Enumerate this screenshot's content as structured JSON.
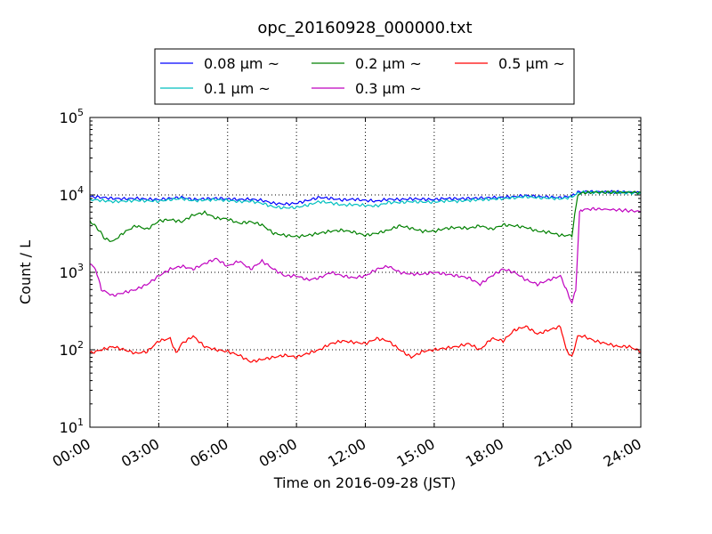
{
  "chart_data": {
    "type": "line",
    "title": "opc_20160928_000000.txt",
    "xlabel": "Time on 2016-09-28 (JST)",
    "ylabel": "Count / L",
    "y_scale": "log",
    "ylim": [
      10,
      100000
    ],
    "xlim": [
      "00:00",
      "24:00"
    ],
    "grid": true,
    "legend_position": "top-center",
    "x_ticks": [
      "00:00",
      "03:00",
      "06:00",
      "09:00",
      "12:00",
      "15:00",
      "18:00",
      "21:00",
      "24:00"
    ],
    "y_ticks": [
      {
        "base": "10",
        "exp": "1",
        "value": 10
      },
      {
        "base": "10",
        "exp": "2",
        "value": 100
      },
      {
        "base": "10",
        "exp": "3",
        "value": 1000
      },
      {
        "base": "10",
        "exp": "4",
        "value": 10000
      },
      {
        "base": "10",
        "exp": "5",
        "value": 100000
      }
    ],
    "series": [
      {
        "name": "0.08 μm ~",
        "color": "#0000ff",
        "points": [
          [
            "00:00",
            9500
          ],
          [
            "00:30",
            9300
          ],
          [
            "01:00",
            9000
          ],
          [
            "01:30",
            8900
          ],
          [
            "02:00",
            9000
          ],
          [
            "02:30",
            8800
          ],
          [
            "03:00",
            8700
          ],
          [
            "03:30",
            9000
          ],
          [
            "04:00",
            9300
          ],
          [
            "04:30",
            8700
          ],
          [
            "05:00",
            8900
          ],
          [
            "05:30",
            9000
          ],
          [
            "06:00",
            8900
          ],
          [
            "06:30",
            8700
          ],
          [
            "07:00",
            8800
          ],
          [
            "07:30",
            8500
          ],
          [
            "08:00",
            7800
          ],
          [
            "08:30",
            7600
          ],
          [
            "09:00",
            7800
          ],
          [
            "09:30",
            8500
          ],
          [
            "10:00",
            9300
          ],
          [
            "10:30",
            9000
          ],
          [
            "11:00",
            8600
          ],
          [
            "11:30",
            8800
          ],
          [
            "12:00",
            8500
          ],
          [
            "12:30",
            8300
          ],
          [
            "13:00",
            8800
          ],
          [
            "13:30",
            8700
          ],
          [
            "14:00",
            8900
          ],
          [
            "14:30",
            8800
          ],
          [
            "15:00",
            8700
          ],
          [
            "15:30",
            9000
          ],
          [
            "16:00",
            8900
          ],
          [
            "16:30",
            9000
          ],
          [
            "17:00",
            9100
          ],
          [
            "17:30",
            9200
          ],
          [
            "18:00",
            9300
          ],
          [
            "18:30",
            9500
          ],
          [
            "19:00",
            9800
          ],
          [
            "19:30",
            9500
          ],
          [
            "20:00",
            9400
          ],
          [
            "20:30",
            9200
          ],
          [
            "21:00",
            9700
          ],
          [
            "21:15",
            10800
          ],
          [
            "21:30",
            11000
          ],
          [
            "22:00",
            11000
          ],
          [
            "23:00",
            10900
          ],
          [
            "24:00",
            10800
          ]
        ]
      },
      {
        "name": "0.1 μm ~",
        "color": "#00bfbf",
        "points": [
          [
            "00:00",
            8700
          ],
          [
            "00:30",
            8500
          ],
          [
            "01:00",
            8200
          ],
          [
            "01:30",
            8300
          ],
          [
            "02:00",
            8500
          ],
          [
            "02:30",
            8400
          ],
          [
            "03:00",
            8300
          ],
          [
            "03:30",
            8700
          ],
          [
            "04:00",
            9000
          ],
          [
            "04:30",
            8400
          ],
          [
            "05:00",
            8600
          ],
          [
            "05:30",
            8700
          ],
          [
            "06:00",
            8500
          ],
          [
            "06:30",
            8200
          ],
          [
            "07:00",
            8300
          ],
          [
            "07:30",
            7800
          ],
          [
            "08:00",
            7000
          ],
          [
            "08:30",
            6800
          ],
          [
            "09:00",
            6900
          ],
          [
            "09:30",
            7400
          ],
          [
            "10:00",
            8200
          ],
          [
            "10:30",
            7900
          ],
          [
            "11:00",
            7400
          ],
          [
            "11:30",
            7500
          ],
          [
            "12:00",
            7300
          ],
          [
            "12:30",
            7200
          ],
          [
            "13:00",
            8000
          ],
          [
            "13:30",
            8000
          ],
          [
            "14:00",
            8200
          ],
          [
            "14:30",
            8100
          ],
          [
            "15:00",
            8100
          ],
          [
            "15:30",
            8400
          ],
          [
            "16:00",
            8300
          ],
          [
            "16:30",
            8500
          ],
          [
            "17:00",
            8700
          ],
          [
            "17:30",
            8800
          ],
          [
            "18:00",
            9000
          ],
          [
            "18:30",
            9200
          ],
          [
            "19:00",
            9500
          ],
          [
            "19:30",
            9200
          ],
          [
            "20:00",
            9100
          ],
          [
            "20:30",
            8900
          ],
          [
            "21:00",
            9400
          ],
          [
            "21:15",
            10500
          ],
          [
            "21:30",
            10800
          ],
          [
            "22:00",
            10800
          ],
          [
            "23:00",
            10700
          ],
          [
            "24:00",
            10600
          ]
        ]
      },
      {
        "name": "0.2 μm ~",
        "color": "#008000",
        "points": [
          [
            "00:00",
            4600
          ],
          [
            "00:20",
            3700
          ],
          [
            "00:40",
            2700
          ],
          [
            "01:00",
            2500
          ],
          [
            "01:30",
            3300
          ],
          [
            "02:00",
            4000
          ],
          [
            "02:30",
            3600
          ],
          [
            "03:00",
            4600
          ],
          [
            "03:30",
            4800
          ],
          [
            "04:00",
            4500
          ],
          [
            "04:30",
            5500
          ],
          [
            "05:00",
            5900
          ],
          [
            "05:30",
            5000
          ],
          [
            "06:00",
            4900
          ],
          [
            "06:30",
            4300
          ],
          [
            "07:00",
            4500
          ],
          [
            "07:30",
            4100
          ],
          [
            "08:00",
            3200
          ],
          [
            "08:30",
            3000
          ],
          [
            "09:00",
            2900
          ],
          [
            "09:30",
            3000
          ],
          [
            "10:00",
            3200
          ],
          [
            "10:30",
            3400
          ],
          [
            "11:00",
            3500
          ],
          [
            "11:30",
            3300
          ],
          [
            "12:00",
            3000
          ],
          [
            "12:30",
            3200
          ],
          [
            "13:00",
            3500
          ],
          [
            "13:30",
            4000
          ],
          [
            "14:00",
            3700
          ],
          [
            "14:30",
            3400
          ],
          [
            "15:00",
            3400
          ],
          [
            "15:30",
            3700
          ],
          [
            "16:00",
            3800
          ],
          [
            "16:30",
            3700
          ],
          [
            "17:00",
            4000
          ],
          [
            "17:30",
            3600
          ],
          [
            "18:00",
            4100
          ],
          [
            "18:30",
            4000
          ],
          [
            "19:00",
            3800
          ],
          [
            "19:30",
            3400
          ],
          [
            "20:00",
            3300
          ],
          [
            "20:30",
            3000
          ],
          [
            "21:00",
            3000
          ],
          [
            "21:15",
            10000
          ],
          [
            "21:30",
            10700
          ],
          [
            "22:00",
            10800
          ],
          [
            "23:00",
            10800
          ],
          [
            "24:00",
            10800
          ]
        ]
      },
      {
        "name": "0.3 μm ~",
        "color": "#bf00bf",
        "points": [
          [
            "00:00",
            1300
          ],
          [
            "00:15",
            1100
          ],
          [
            "00:30",
            600
          ],
          [
            "01:00",
            500
          ],
          [
            "01:30",
            550
          ],
          [
            "02:00",
            600
          ],
          [
            "02:30",
            700
          ],
          [
            "03:00",
            900
          ],
          [
            "03:30",
            1100
          ],
          [
            "04:00",
            1200
          ],
          [
            "04:30",
            1100
          ],
          [
            "05:00",
            1300
          ],
          [
            "05:30",
            1500
          ],
          [
            "06:00",
            1200
          ],
          [
            "06:30",
            1400
          ],
          [
            "07:00",
            1100
          ],
          [
            "07:30",
            1400
          ],
          [
            "08:00",
            1100
          ],
          [
            "08:30",
            900
          ],
          [
            "09:00",
            900
          ],
          [
            "09:30",
            800
          ],
          [
            "10:00",
            850
          ],
          [
            "10:30",
            1000
          ],
          [
            "11:00",
            900
          ],
          [
            "11:30",
            850
          ],
          [
            "12:00",
            900
          ],
          [
            "12:30",
            1100
          ],
          [
            "13:00",
            1200
          ],
          [
            "13:30",
            1000
          ],
          [
            "14:00",
            950
          ],
          [
            "14:30",
            950
          ],
          [
            "15:00",
            1000
          ],
          [
            "15:30",
            950
          ],
          [
            "16:00",
            900
          ],
          [
            "16:30",
            850
          ],
          [
            "17:00",
            700
          ],
          [
            "17:30",
            900
          ],
          [
            "18:00",
            1100
          ],
          [
            "18:30",
            1000
          ],
          [
            "19:00",
            800
          ],
          [
            "19:30",
            700
          ],
          [
            "20:00",
            800
          ],
          [
            "20:30",
            900
          ],
          [
            "21:00",
            400
          ],
          [
            "21:10",
            600
          ],
          [
            "21:20",
            6000
          ],
          [
            "21:30",
            6500
          ],
          [
            "22:00",
            6600
          ],
          [
            "23:00",
            6400
          ],
          [
            "24:00",
            6100
          ]
        ]
      },
      {
        "name": "0.5 μm ~",
        "color": "#ff0000",
        "points": [
          [
            "00:00",
            90
          ],
          [
            "00:30",
            100
          ],
          [
            "01:00",
            110
          ],
          [
            "01:30",
            100
          ],
          [
            "02:00",
            90
          ],
          [
            "02:30",
            95
          ],
          [
            "03:00",
            130
          ],
          [
            "03:30",
            140
          ],
          [
            "03:45",
            90
          ],
          [
            "04:00",
            120
          ],
          [
            "04:30",
            150
          ],
          [
            "05:00",
            110
          ],
          [
            "05:30",
            100
          ],
          [
            "06:00",
            95
          ],
          [
            "06:30",
            85
          ],
          [
            "07:00",
            70
          ],
          [
            "07:30",
            75
          ],
          [
            "08:00",
            80
          ],
          [
            "08:30",
            85
          ],
          [
            "09:00",
            80
          ],
          [
            "09:30",
            90
          ],
          [
            "10:00",
            100
          ],
          [
            "10:30",
            120
          ],
          [
            "11:00",
            130
          ],
          [
            "11:30",
            125
          ],
          [
            "12:00",
            120
          ],
          [
            "12:30",
            140
          ],
          [
            "13:00",
            130
          ],
          [
            "13:30",
            100
          ],
          [
            "14:00",
            80
          ],
          [
            "14:30",
            95
          ],
          [
            "15:00",
            100
          ],
          [
            "15:30",
            105
          ],
          [
            "16:00",
            110
          ],
          [
            "16:30",
            120
          ],
          [
            "17:00",
            100
          ],
          [
            "17:30",
            140
          ],
          [
            "18:00",
            130
          ],
          [
            "18:30",
            180
          ],
          [
            "19:00",
            200
          ],
          [
            "19:30",
            160
          ],
          [
            "20:00",
            180
          ],
          [
            "20:30",
            200
          ],
          [
            "20:45",
            100
          ],
          [
            "21:00",
            80
          ],
          [
            "21:15",
            150
          ],
          [
            "21:30",
            150
          ],
          [
            "22:00",
            130
          ],
          [
            "22:30",
            120
          ],
          [
            "23:00",
            110
          ],
          [
            "23:30",
            110
          ],
          [
            "24:00",
            95
          ]
        ]
      }
    ]
  }
}
